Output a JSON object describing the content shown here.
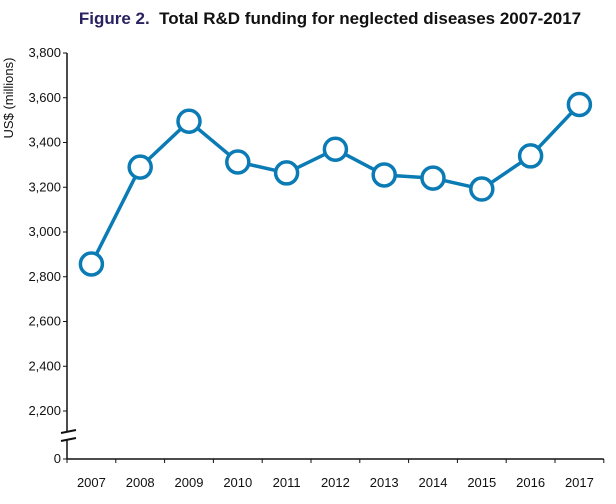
{
  "chart_data": {
    "type": "line",
    "title_prefix": "Figure 2.",
    "title": "Total R&D funding for neglected diseases 2007-2017",
    "xlabel": "",
    "ylabel": "US$ (millions)",
    "categories": [
      "2007",
      "2008",
      "2009",
      "2010",
      "2011",
      "2012",
      "2013",
      "2014",
      "2015",
      "2016",
      "2017"
    ],
    "values": [
      2857,
      3290,
      3495,
      3313,
      3264,
      3370,
      3255,
      3241,
      3192,
      3340,
      3570
    ],
    "ylim": [
      2200,
      3800
    ],
    "axis_break": true,
    "yticks": [
      0,
      2200,
      2400,
      2600,
      2800,
      3000,
      3200,
      3400,
      3600,
      3800
    ],
    "ytick_labels": [
      "0",
      "2,200",
      "2,400",
      "2,600",
      "2,800",
      "3,000",
      "3,200",
      "3,400",
      "3,600",
      "3,800"
    ],
    "grid": false,
    "colors": {
      "line": "#0a7bb5",
      "title_prefix": "#2a2160"
    }
  }
}
